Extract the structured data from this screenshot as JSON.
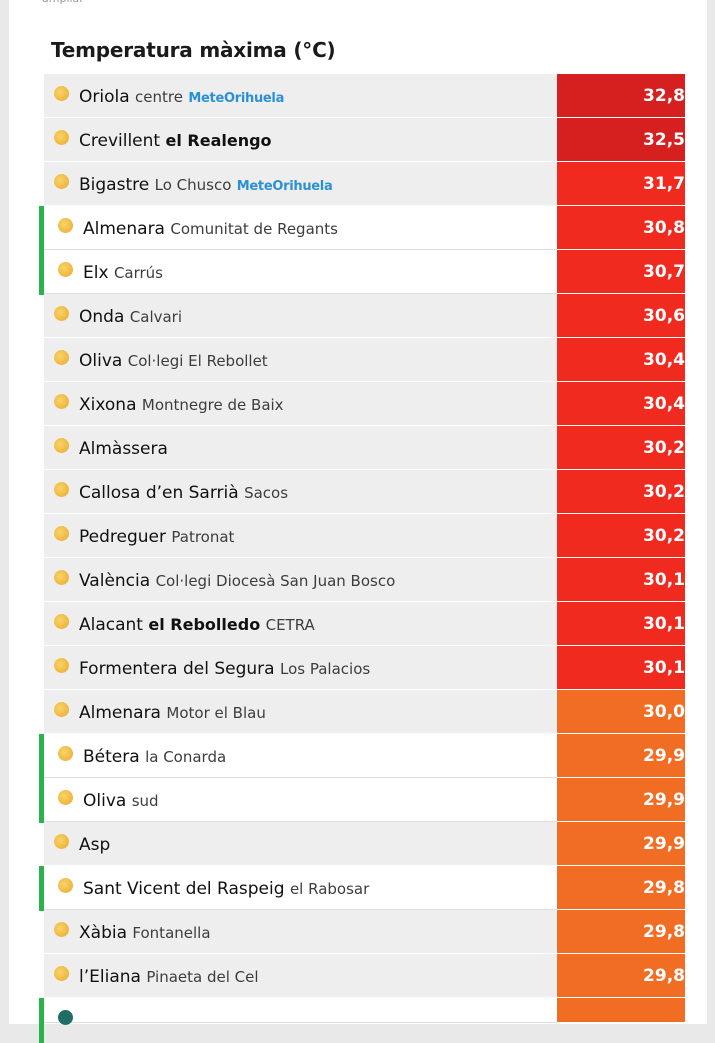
{
  "header": {
    "ampliar_label": "ampliar",
    "title": "Temperatura màxima (°C)"
  },
  "colors": {
    "dark_red": "#d61f1f",
    "red": "#f02a1f",
    "orange": "#f26d24",
    "green_marker": "#2bb24c",
    "row_bg": "#eeeeee"
  },
  "rows": [
    {
      "name": "Oriola",
      "sub": "centre",
      "bold_sub": "",
      "extra": "",
      "logo": "MeteOrihuela",
      "value": "32,8",
      "active": false
    },
    {
      "name": "Crevillent",
      "sub": "",
      "bold_sub": "el Realengo",
      "extra": "",
      "logo": "",
      "value": "32,5",
      "active": false
    },
    {
      "name": "Bigastre",
      "sub": "Lo Chusco",
      "bold_sub": "",
      "extra": "",
      "logo": "MeteOrihuela",
      "value": "31,7",
      "active": false
    },
    {
      "name": "Almenara",
      "sub": "Comunitat de Regants",
      "bold_sub": "",
      "extra": "",
      "logo": "",
      "value": "30,8",
      "active": true
    },
    {
      "name": "Elx",
      "sub": "Carrús",
      "bold_sub": "",
      "extra": "",
      "logo": "",
      "value": "30,7",
      "active": true
    },
    {
      "name": "Onda",
      "sub": "Calvari",
      "bold_sub": "",
      "extra": "",
      "logo": "",
      "value": "30,6",
      "active": false
    },
    {
      "name": "Oliva",
      "sub": "Col·legi El Rebollet",
      "bold_sub": "",
      "extra": "",
      "logo": "",
      "value": "30,4",
      "active": false
    },
    {
      "name": "Xixona",
      "sub": "Montnegre de Baix",
      "bold_sub": "",
      "extra": "",
      "logo": "",
      "value": "30,4",
      "active": false
    },
    {
      "name": "Almàssera",
      "sub": "",
      "bold_sub": "",
      "extra": "",
      "logo": "",
      "value": "30,2",
      "active": false
    },
    {
      "name": "Callosa d’en Sarrià",
      "sub": "Sacos",
      "bold_sub": "",
      "extra": "",
      "logo": "",
      "value": "30,2",
      "active": false
    },
    {
      "name": "Pedreguer",
      "sub": "Patronat",
      "bold_sub": "",
      "extra": "",
      "logo": "",
      "value": "30,2",
      "active": false
    },
    {
      "name": "València",
      "sub": "Col·legi Diocesà San Juan Bosco",
      "bold_sub": "",
      "extra": "",
      "logo": "",
      "value": "30,1",
      "active": false
    },
    {
      "name": "Alacant",
      "sub": "",
      "bold_sub": "el Rebolledo",
      "extra": "CETRA",
      "logo": "",
      "value": "30,1",
      "active": false
    },
    {
      "name": "Formentera del Segura",
      "sub": "Los Palacios",
      "bold_sub": "",
      "extra": "",
      "logo": "",
      "value": "30,1",
      "active": false
    },
    {
      "name": "Almenara",
      "sub": "Motor el Blau",
      "bold_sub": "",
      "extra": "",
      "logo": "",
      "value": "30,0",
      "active": false
    },
    {
      "name": "Bétera",
      "sub": "la Conarda",
      "bold_sub": "",
      "extra": "",
      "logo": "",
      "value": "29,9",
      "active": true
    },
    {
      "name": "Oliva",
      "sub": "sud",
      "bold_sub": "",
      "extra": "",
      "logo": "",
      "value": "29,9",
      "active": true
    },
    {
      "name": "Asp",
      "sub": "",
      "bold_sub": "",
      "extra": "",
      "logo": "",
      "value": "29,9",
      "active": false
    },
    {
      "name": "Sant Vicent del Raspeig",
      "sub": "el Rabosar",
      "bold_sub": "",
      "extra": "",
      "logo": "",
      "value": "29,8",
      "active": true
    },
    {
      "name": "Xàbia",
      "sub": "Fontanella",
      "bold_sub": "",
      "extra": "",
      "logo": "",
      "value": "29,8",
      "active": false
    },
    {
      "name": "l’Eliana",
      "sub": "Pinaeta del Cel",
      "bold_sub": "",
      "extra": "",
      "logo": "",
      "value": "29,8",
      "active": false
    },
    {
      "name": "",
      "sub": "",
      "bold_sub": "",
      "extra": "",
      "logo": "",
      "value": "",
      "active": true,
      "cut": true
    }
  ]
}
